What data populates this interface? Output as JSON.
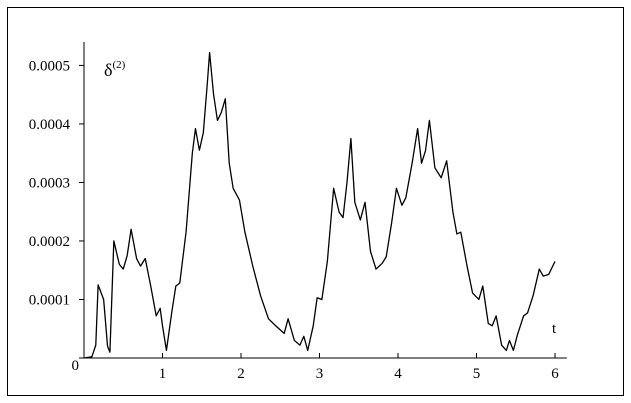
{
  "chart_data": {
    "type": "line",
    "ylabel": "δ",
    "ylabel_superscript": "(2)",
    "xlabel": "t",
    "xlim": [
      0,
      6.15
    ],
    "ylim": [
      0,
      0.00054
    ],
    "xticks": [
      1,
      2,
      3,
      4,
      5,
      6
    ],
    "yticks": [
      0,
      0.0001,
      0.0002,
      0.0003,
      0.0004,
      0.0005
    ],
    "color": "#000000",
    "x": [
      0,
      0.1,
      0.15,
      0.18,
      0.25,
      0.3,
      0.33,
      0.38,
      0.45,
      0.5,
      0.55,
      0.6,
      0.67,
      0.72,
      0.78,
      0.85,
      0.92,
      0.97,
      1.0,
      1.05,
      1.12,
      1.17,
      1.22,
      1.3,
      1.38,
      1.42,
      1.47,
      1.52,
      1.57,
      1.6,
      1.65,
      1.7,
      1.75,
      1.8,
      1.85,
      1.9,
      1.98,
      2.05,
      2.15,
      2.25,
      2.35,
      2.45,
      2.55,
      2.6,
      2.68,
      2.75,
      2.8,
      2.85,
      2.92,
      2.97,
      3.03,
      3.1,
      3.18,
      3.25,
      3.3,
      3.35,
      3.4,
      3.45,
      3.52,
      3.58,
      3.65,
      3.72,
      3.8,
      3.85,
      3.92,
      3.98,
      4.05,
      4.1,
      4.18,
      4.25,
      4.3,
      4.35,
      4.4,
      4.47,
      4.55,
      4.62,
      4.7,
      4.75,
      4.8,
      4.88,
      4.95,
      5.03,
      5.08,
      5.15,
      5.2,
      5.25,
      5.32,
      5.38,
      5.42,
      5.47,
      5.52,
      5.6,
      5.65,
      5.72,
      5.8,
      5.85,
      5.92,
      6.0
    ],
    "values": [
      0,
      2e-06,
      2.2e-05,
      0.000125,
      0.0001,
      2e-05,
      1e-05,
      0.0002,
      0.00016,
      0.000152,
      0.000175,
      0.00022,
      0.00017,
      0.000157,
      0.00017,
      0.000123,
      7.2e-05,
      8.5e-05,
      5.5e-05,
      1.3e-05,
      8e-05,
      0.000123,
      0.000128,
      0.000215,
      0.00035,
      0.000392,
      0.000355,
      0.000385,
      0.000468,
      0.000522,
      0.000451,
      0.000406,
      0.00042,
      0.000443,
      0.000333,
      0.00029,
      0.00027,
      0.000215,
      0.000157,
      0.000106,
      6.7e-05,
      5.4e-05,
      4.2e-05,
      6.7e-05,
      3e-05,
      2.2e-05,
      3.7e-05,
      1.3e-05,
      5.5e-05,
      0.000103,
      0.0001,
      0.000165,
      0.00029,
      0.000249,
      0.00024,
      0.0003,
      0.000375,
      0.000266,
      0.000236,
      0.000266,
      0.000182,
      0.000152,
      0.000162,
      0.000173,
      0.000232,
      0.00029,
      0.000261,
      0.000274,
      0.000333,
      0.000392,
      0.000333,
      0.000354,
      0.000406,
      0.000325,
      0.000308,
      0.000337,
      0.000249,
      0.000212,
      0.000215,
      0.000157,
      0.000111,
      0.0001,
      0.000123,
      5.9e-05,
      5.5e-05,
      7.2e-05,
      2.2e-05,
      1.3e-05,
      3e-05,
      1.3e-05,
      3.9e-05,
      7.2e-05,
      7.7e-05,
      0.000106,
      0.000152,
      0.00014,
      0.000143,
      0.000165
    ]
  }
}
